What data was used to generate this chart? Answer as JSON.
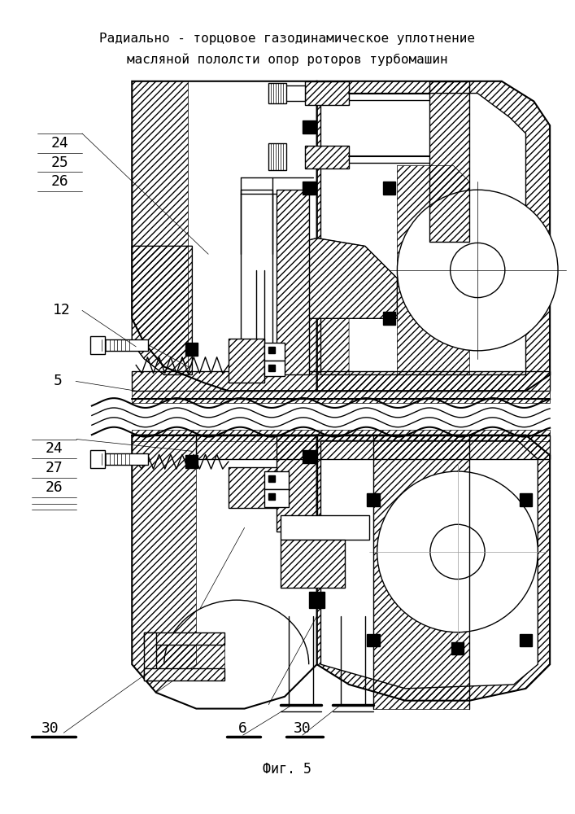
{
  "title_line1": "Радиально - торцовое газодинамическое уплотнение",
  "title_line2": "масляной пололсти опор роторов турбомашин",
  "caption": "Фиг. 5",
  "bg_color": "#ffffff",
  "line_color": "#000000",
  "title_fontsize": 11.5,
  "label_fontsize": 13,
  "caption_fontsize": 12
}
